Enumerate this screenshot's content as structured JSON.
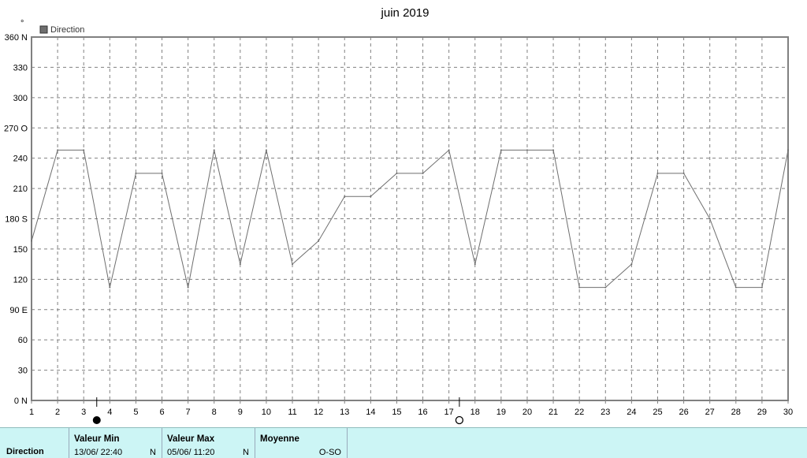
{
  "chart_data": {
    "type": "line",
    "title": "juin 2019",
    "y_unit_mark": "°",
    "legend": [
      {
        "name": "Direction",
        "color": "#6e6e6e"
      }
    ],
    "legend_position": "top-left",
    "grid": true,
    "xlim": [
      1,
      30
    ],
    "ylim": [
      0,
      360
    ],
    "x_ticks": [
      "1",
      "2",
      "3",
      "4",
      "5",
      "6",
      "7",
      "8",
      "9",
      "10",
      "11",
      "12",
      "13",
      "14",
      "15",
      "16",
      "17",
      "18",
      "19",
      "20",
      "21",
      "22",
      "23",
      "24",
      "25",
      "26",
      "27",
      "28",
      "29",
      "30"
    ],
    "y_ticks": [
      {
        "value": 0,
        "label": "0",
        "dir": "N"
      },
      {
        "value": 30,
        "label": "30",
        "dir": ""
      },
      {
        "value": 60,
        "label": "60",
        "dir": ""
      },
      {
        "value": 90,
        "label": "90",
        "dir": "E"
      },
      {
        "value": 120,
        "label": "120",
        "dir": ""
      },
      {
        "value": 150,
        "label": "150",
        "dir": ""
      },
      {
        "value": 180,
        "label": "180",
        "dir": "S"
      },
      {
        "value": 210,
        "label": "210",
        "dir": ""
      },
      {
        "value": 240,
        "label": "240",
        "dir": ""
      },
      {
        "value": 270,
        "label": "270",
        "dir": "O"
      },
      {
        "value": 300,
        "label": "300",
        "dir": ""
      },
      {
        "value": 330,
        "label": "330",
        "dir": ""
      },
      {
        "value": 360,
        "label": "360",
        "dir": "N"
      }
    ],
    "series": [
      {
        "name": "Direction",
        "color": "#6e6e6e",
        "points": [
          [
            1,
            158
          ],
          [
            2,
            248
          ],
          [
            3,
            248
          ],
          [
            4,
            112
          ],
          [
            5,
            225
          ],
          [
            6,
            225
          ],
          [
            7,
            112
          ],
          [
            8,
            248
          ],
          [
            9,
            135
          ],
          [
            10,
            248
          ],
          [
            11,
            135
          ],
          [
            12,
            158
          ],
          [
            13,
            202
          ],
          [
            14,
            202
          ],
          [
            15,
            225
          ],
          [
            16,
            225
          ],
          [
            17,
            248
          ],
          [
            18,
            135
          ],
          [
            19,
            248
          ],
          [
            20,
            248
          ],
          [
            21,
            248
          ],
          [
            22,
            112
          ],
          [
            23,
            112
          ],
          [
            24,
            135
          ],
          [
            25,
            225
          ],
          [
            26,
            225
          ],
          [
            27,
            180
          ],
          [
            28,
            112
          ],
          [
            29,
            112
          ],
          [
            30,
            248
          ]
        ]
      }
    ],
    "moon_markers": [
      {
        "x": 3.5,
        "phase": "new-moon",
        "symbol": "●"
      },
      {
        "x": 17.4,
        "phase": "full-moon",
        "symbol": "○"
      }
    ]
  },
  "footer": {
    "series_label": "Direction",
    "min": {
      "label": "Valeur Min",
      "date": "13/06/  22:40",
      "value": "N"
    },
    "max": {
      "label": "Valeur Max",
      "date": "05/06/  11:20",
      "value": "N"
    },
    "avg": {
      "label": "Moyenne",
      "value": "O-SO"
    }
  }
}
